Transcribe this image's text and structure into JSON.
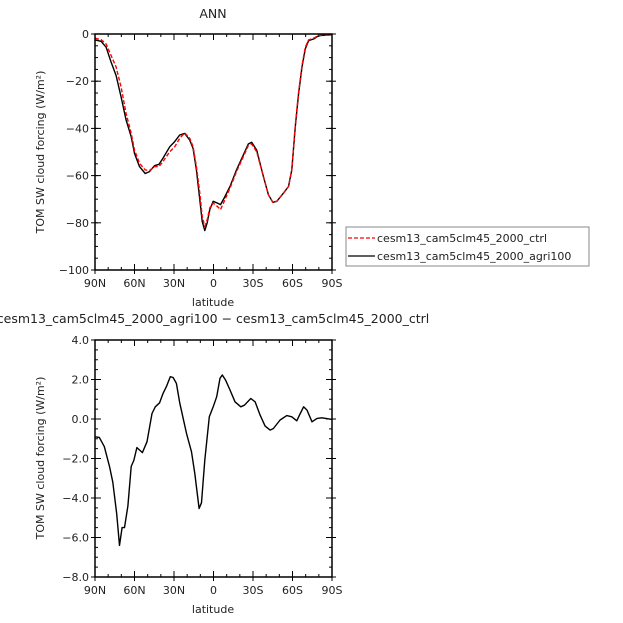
{
  "chart_data": [
    {
      "type": "line",
      "title": "ANN",
      "xlabel": "latitude",
      "ylabel": "TOM SW cloud forcing (W/m²)",
      "xlim": [
        90,
        -90
      ],
      "ylim": [
        -100,
        0
      ],
      "xticks": [
        90,
        60,
        30,
        0,
        -30,
        -60,
        -90
      ],
      "xtick_labels": [
        "90N",
        "60N",
        "30N",
        "0",
        "30S",
        "60S",
        "90S"
      ],
      "yticks": [
        0,
        -20,
        -40,
        -60,
        -80,
        -100
      ],
      "ytick_labels": [
        "0",
        "−20",
        "−40",
        "−60",
        "−80",
        "−100"
      ],
      "grid": false,
      "legend_placement": "right, outside",
      "series": [
        {
          "name": "cesm13_cam5clm45_2000_ctrl",
          "color": "#ff0000",
          "style": "dashed",
          "x": [
            90,
            85.4,
            81.6,
            77.8,
            74,
            70.2,
            66.4,
            62.5,
            60,
            56.2,
            51.9,
            48.6,
            44.8,
            41.4,
            38.4,
            33.3,
            29.5,
            25.7,
            21.9,
            18.1,
            15.5,
            13,
            10.4,
            8.6,
            6.6,
            4.8,
            2.8,
            0.25,
            -2.8,
            -5.3,
            -8.1,
            -12.5,
            -17.5,
            -22.6,
            -26.4,
            -29,
            -32.8,
            -37.9,
            -41.7,
            -45,
            -48.1,
            -53.2,
            -57,
            -59.5,
            -62.1,
            -64.6,
            -67.2,
            -69.7,
            -72.2,
            -76,
            -79.8,
            -90
          ],
          "y": [
            -1.8,
            -2.4,
            -4.2,
            -9.1,
            -14,
            -22.5,
            -33.7,
            -42.1,
            -49.2,
            -54.8,
            -57.6,
            -57.9,
            -56.2,
            -56.2,
            -54.1,
            -49.9,
            -47.8,
            -44.2,
            -41.9,
            -44.2,
            -47.8,
            -56.2,
            -67.4,
            -77.2,
            -81.5,
            -78.7,
            -73.7,
            -71.6,
            -73,
            -74.4,
            -70.9,
            -65.3,
            -58.3,
            -52,
            -47.3,
            -46.6,
            -49.9,
            -60.4,
            -68.1,
            -71.3,
            -70.9,
            -67.4,
            -64.6,
            -57.6,
            -38.6,
            -24.6,
            -13.3,
            -5.6,
            -2.5,
            -1.8,
            -0.6,
            -0.1
          ]
        },
        {
          "name": "cesm13_cam5clm45_2000_agri100",
          "color": "#000000",
          "style": "solid",
          "x": [
            90,
            85.4,
            81.6,
            77.8,
            74,
            70.2,
            66.4,
            62.5,
            60,
            56.2,
            51.9,
            48.6,
            44.8,
            41.4,
            38.4,
            33.3,
            29.5,
            25.7,
            21.9,
            18.1,
            15.5,
            13,
            10.4,
            8.6,
            6.6,
            4.8,
            2.8,
            0.25,
            -2.8,
            -5.3,
            -8.1,
            -12.5,
            -17.5,
            -22.6,
            -26.4,
            -29,
            -32.8,
            -37.9,
            -41.7,
            -45,
            -48.1,
            -53.2,
            -57,
            -59.5,
            -62.1,
            -64.6,
            -67.2,
            -69.7,
            -72.2,
            -76,
            -79.8,
            -90
          ],
          "y": [
            -2.5,
            -3.1,
            -5.6,
            -11.9,
            -17.6,
            -26.7,
            -36.5,
            -43.5,
            -50.6,
            -56.2,
            -59.1,
            -58.3,
            -55.8,
            -55.2,
            -52.7,
            -47.8,
            -45.6,
            -42.8,
            -42.1,
            -44.9,
            -48.5,
            -57.6,
            -70.2,
            -79.4,
            -83.3,
            -80,
            -74.4,
            -70.9,
            -71.6,
            -72.3,
            -69.5,
            -64.6,
            -57.6,
            -51.3,
            -46.6,
            -45.9,
            -49.2,
            -60.4,
            -68.1,
            -71.3,
            -70.9,
            -67.4,
            -64.6,
            -57.6,
            -39.3,
            -25.3,
            -14,
            -6.3,
            -2.8,
            -2.1,
            -0.7,
            -0.3
          ]
        }
      ]
    },
    {
      "type": "line",
      "title": "cesm13_cam5clm45_2000_agri100 − cesm13_cam5clm45_2000_ctrl",
      "xlabel": "latitude",
      "ylabel": "TOM SW cloud forcing (W/m²)",
      "xlim": [
        90,
        -90
      ],
      "ylim": [
        -8,
        4
      ],
      "xticks": [
        90,
        60,
        30,
        0,
        -30,
        -60,
        -90
      ],
      "xtick_labels": [
        "90N",
        "60N",
        "30N",
        "0",
        "30S",
        "60S",
        "90S"
      ],
      "yticks": [
        4,
        2,
        0,
        -2,
        -4,
        -6,
        -8
      ],
      "ytick_labels": [
        "4.0",
        "2.0",
        "0.0",
        "−2.0",
        "−4.0",
        "−6.0",
        "−8.0"
      ],
      "grid": false,
      "series": [
        {
          "color": "#000000",
          "style": "solid",
          "x": [
            90,
            86.7,
            82.9,
            79,
            76.5,
            73.5,
            71.4,
            69.4,
            67.6,
            65,
            62.5,
            60.5,
            58.2,
            54,
            50.5,
            46.7,
            44.2,
            40.9,
            38.3,
            35.8,
            32.8,
            30.7,
            28.2,
            25.6,
            20.5,
            16.7,
            14.2,
            10.9,
            9.1,
            6.6,
            3.2,
            0.2,
            -2.4,
            -4.9,
            -6.7,
            -9.2,
            -12.5,
            -16.3,
            -20.7,
            -23.5,
            -28.3,
            -31.6,
            -35.4,
            -39.2,
            -43,
            -45.5,
            -50.6,
            -55.7,
            -59.5,
            -63.3,
            -65.3,
            -68.4,
            -71,
            -74.8,
            -78.6,
            -82.4,
            -90
          ],
          "y": [
            -0.9,
            -0.93,
            -1.4,
            -2.4,
            -3.2,
            -4.8,
            -6.4,
            -5.5,
            -5.5,
            -4.4,
            -2.4,
            -2.1,
            -1.45,
            -1.7,
            -1.15,
            0.28,
            0.62,
            0.82,
            1.3,
            1.64,
            2.14,
            2.1,
            1.8,
            0.8,
            -0.73,
            -1.66,
            -2.76,
            -4.53,
            -4.24,
            -2.08,
            0.11,
            0.62,
            1.13,
            2.06,
            2.23,
            1.97,
            1.47,
            0.87,
            0.62,
            0.7,
            1.04,
            0.87,
            0.2,
            -0.36,
            -0.56,
            -0.48,
            -0.05,
            0.17,
            0.11,
            -0.09,
            0.2,
            0.62,
            0.45,
            -0.14,
            0.03,
            0.06,
            -0.02
          ]
        }
      ]
    }
  ]
}
